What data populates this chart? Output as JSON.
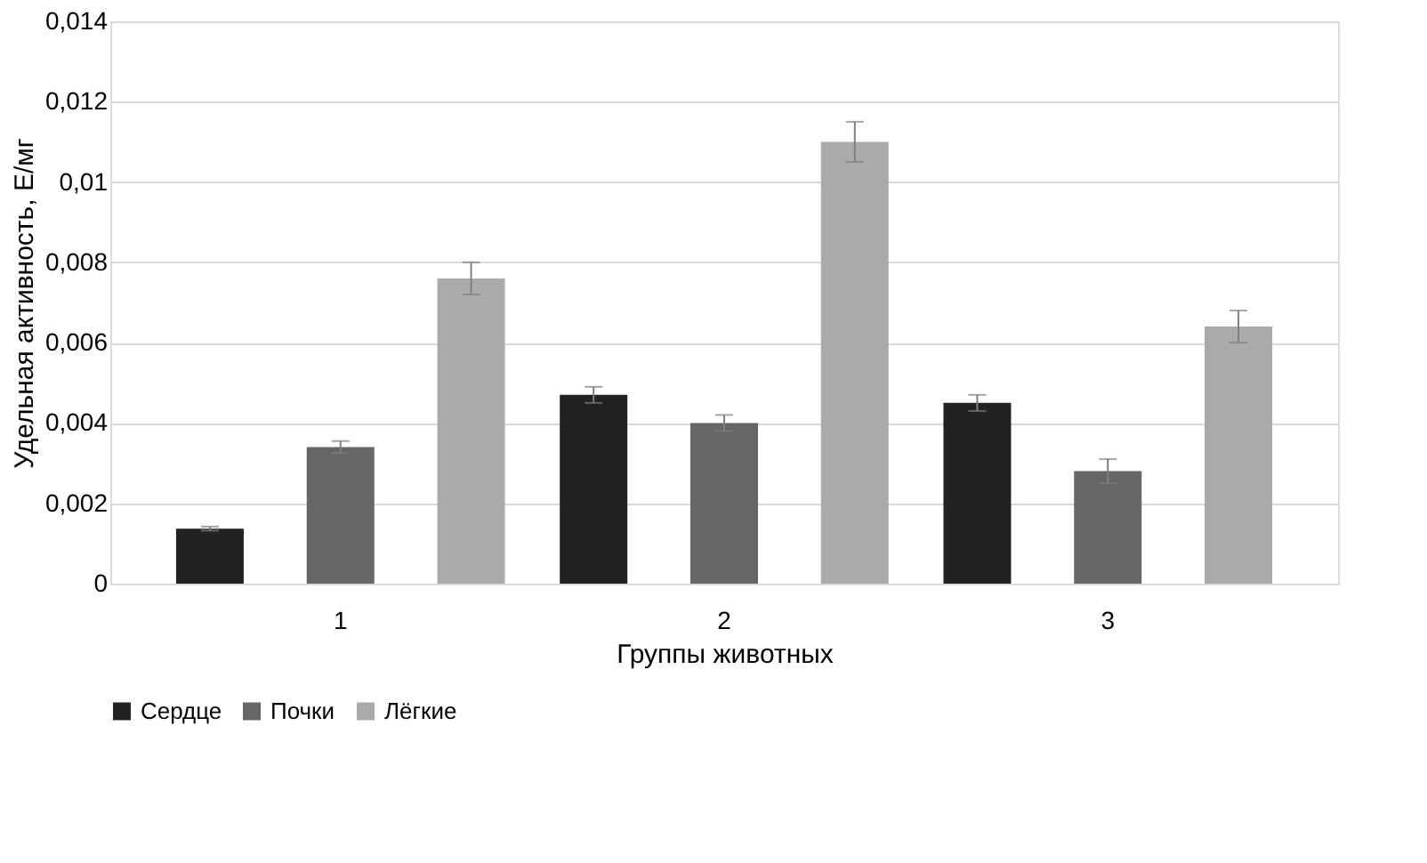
{
  "chart_data": {
    "type": "bar",
    "xlabel": "Группы животных",
    "ylabel": "Удельная активность, Е/мг",
    "categories": [
      "1",
      "2",
      "3"
    ],
    "series": [
      {
        "name": "Сердце",
        "color": "#222222",
        "values": [
          0.00137,
          0.0047,
          0.0045
        ],
        "errors": [
          5e-05,
          0.0002,
          0.0002
        ]
      },
      {
        "name": "Почки",
        "color": "#666666",
        "values": [
          0.0034,
          0.004,
          0.0028
        ],
        "errors": [
          0.00015,
          0.0002,
          0.0003
        ]
      },
      {
        "name": "Лёгкие",
        "color": "#aaaaaa",
        "values": [
          0.0076,
          0.011,
          0.0064
        ],
        "errors": [
          0.0004,
          0.0005,
          0.0004
        ]
      }
    ],
    "ylim": [
      0,
      0.014
    ],
    "yticks": [
      {
        "value": 0,
        "label": "0"
      },
      {
        "value": 0.002,
        "label": "0,002"
      },
      {
        "value": 0.004,
        "label": "0,004"
      },
      {
        "value": 0.006,
        "label": "0,006"
      },
      {
        "value": 0.008,
        "label": "0,008"
      },
      {
        "value": 0.01,
        "label": "0,01"
      },
      {
        "value": 0.012,
        "label": "0,012"
      },
      {
        "value": 0.014,
        "label": "0,014"
      }
    ],
    "grid": "y",
    "legend": "bottom"
  }
}
